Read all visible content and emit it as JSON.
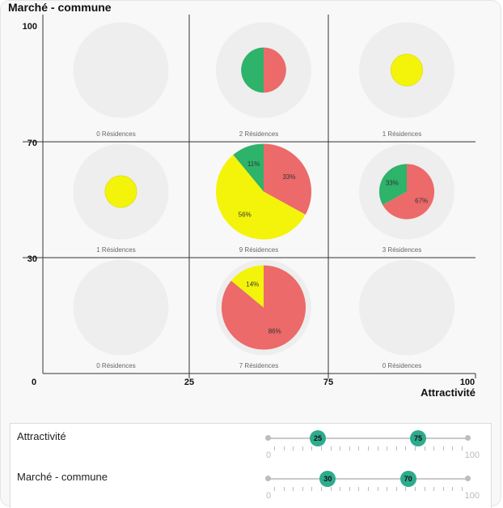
{
  "chart_data": {
    "type": "bubble-matrix",
    "title": "",
    "xlabel": "Attractivité",
    "ylabel": "Marché - commune",
    "xlim": [
      0,
      100
    ],
    "ylim": [
      0,
      100
    ],
    "x_ticks": [
      "0",
      "25",
      "75",
      "100"
    ],
    "y_ticks": [
      "100",
      "70",
      "30"
    ],
    "x_breaks": [
      0,
      25,
      75,
      100
    ],
    "y_breaks": [
      0,
      30,
      70,
      100
    ],
    "count_suffix": "Résidences",
    "colors": {
      "green": "#2db36a",
      "red": "#ec6a6a",
      "yellow": "#f4f40a",
      "halo": "#eeeeee",
      "grid": "#333333"
    },
    "cells": [
      {
        "col": 0,
        "row": 0,
        "count": 0,
        "slices": []
      },
      {
        "col": 1,
        "row": 0,
        "count": 2,
        "slices": [
          {
            "color": "red",
            "value": 50,
            "label": ""
          },
          {
            "color": "green",
            "value": 50,
            "label": ""
          }
        ]
      },
      {
        "col": 2,
        "row": 0,
        "count": 1,
        "slices": [
          {
            "color": "yellow",
            "value": 100,
            "label": ""
          }
        ]
      },
      {
        "col": 0,
        "row": 1,
        "count": 1,
        "slices": [
          {
            "color": "yellow",
            "value": 100,
            "label": ""
          }
        ]
      },
      {
        "col": 1,
        "row": 1,
        "count": 9,
        "slices": [
          {
            "color": "red",
            "value": 33,
            "label": "33%"
          },
          {
            "color": "yellow",
            "value": 56,
            "label": "56%"
          },
          {
            "color": "green",
            "value": 11,
            "label": "11%"
          }
        ]
      },
      {
        "col": 2,
        "row": 1,
        "count": 3,
        "slices": [
          {
            "color": "red",
            "value": 67,
            "label": "67%"
          },
          {
            "color": "green",
            "value": 33,
            "label": "33%"
          }
        ]
      },
      {
        "col": 0,
        "row": 2,
        "count": 0,
        "slices": []
      },
      {
        "col": 1,
        "row": 2,
        "count": 7,
        "slices": [
          {
            "color": "red",
            "value": 86,
            "label": "86%"
          },
          {
            "color": "yellow",
            "value": 14,
            "label": "14%"
          }
        ]
      },
      {
        "col": 2,
        "row": 2,
        "count": 0,
        "slices": []
      }
    ]
  },
  "controls": {
    "attractivite": {
      "label": "Attractivité",
      "min": 0,
      "max": 100,
      "low": 25,
      "high": 75,
      "min_label": "0",
      "max_label": "100"
    },
    "marche": {
      "label": "Marché - commune",
      "min": 0,
      "max": 100,
      "low": 30,
      "high": 70,
      "min_label": "0",
      "max_label": "100"
    }
  }
}
